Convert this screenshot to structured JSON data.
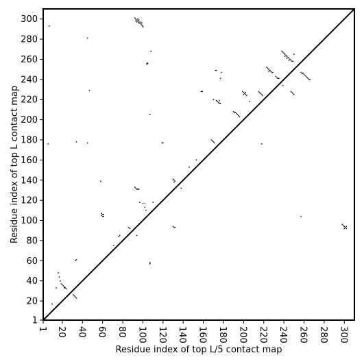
{
  "chart_data": {
    "type": "scatter",
    "title": "",
    "xlabel": "Residue index of top L/5 contact map",
    "ylabel": "Residue index of top L contact map",
    "xlim": [
      1,
      310
    ],
    "ylim": [
      1,
      310
    ],
    "xticks": [
      1,
      20,
      40,
      60,
      80,
      100,
      120,
      140,
      160,
      180,
      200,
      220,
      240,
      260,
      280,
      300
    ],
    "yticks": [
      1,
      20,
      40,
      60,
      80,
      100,
      120,
      140,
      160,
      180,
      200,
      220,
      240,
      260,
      280,
      300
    ],
    "diagonal": true,
    "marker_color": "#000000",
    "series": [
      {
        "values": [
          [
            60,
            106
          ],
          [
            59,
            105
          ],
          [
            61,
            104
          ],
          [
            61,
            106
          ],
          [
            59,
            107
          ],
          [
            60,
            104
          ],
          [
            107,
            57
          ],
          [
            107,
            58
          ],
          [
            257,
            104
          ],
          [
            299,
            95
          ],
          [
            300,
            94
          ],
          [
            301,
            93
          ],
          [
            302,
            92
          ],
          [
            300,
            92
          ],
          [
            298,
            96
          ],
          [
            302,
            94
          ],
          [
            104,
            255
          ],
          [
            104,
            256
          ]
        ]
      },
      {
        "values": [
          [
            7,
            293
          ],
          [
            45,
            281
          ],
          [
            47,
            229
          ],
          [
            34,
            178
          ],
          [
            45,
            177
          ],
          [
            6,
            176
          ],
          [
            58,
            139
          ],
          [
            92,
            301
          ],
          [
            93,
            300
          ],
          [
            94,
            299
          ],
          [
            95,
            298
          ],
          [
            96,
            297
          ],
          [
            97,
            296
          ],
          [
            98,
            295
          ],
          [
            99,
            294
          ],
          [
            100,
            293
          ],
          [
            100,
            292
          ],
          [
            95,
            300
          ],
          [
            96,
            299
          ],
          [
            98,
            297
          ],
          [
            99,
            296
          ],
          [
            93,
            298
          ],
          [
            94,
            297
          ],
          [
            96,
            296
          ],
          [
            108,
            268
          ],
          [
            105,
            256
          ],
          [
            107,
            205
          ],
          [
            92,
            133
          ],
          [
            93,
            132
          ],
          [
            94,
            131
          ],
          [
            95,
            131
          ],
          [
            96,
            131
          ],
          [
            97,
            118
          ],
          [
            100,
            117
          ],
          [
            102,
            117
          ],
          [
            102,
            113
          ],
          [
            103,
            110
          ],
          [
            110,
            118
          ],
          [
            86,
            93
          ],
          [
            87,
            92
          ],
          [
            76,
            84
          ],
          [
            77,
            85
          ],
          [
            71,
            75
          ],
          [
            94,
            85
          ],
          [
            119,
            177
          ],
          [
            120,
            177
          ],
          [
            130,
            141
          ],
          [
            131,
            140
          ],
          [
            132,
            139
          ],
          [
            131,
            138
          ],
          [
            130,
            94
          ],
          [
            131,
            93
          ],
          [
            132,
            93
          ],
          [
            138,
            132
          ],
          [
            146,
            153
          ],
          [
            153,
            160
          ],
          [
            158,
            228
          ],
          [
            159,
            228
          ],
          [
            168,
            180
          ],
          [
            169,
            179
          ],
          [
            170,
            178
          ],
          [
            171,
            177
          ],
          [
            172,
            249
          ],
          [
            173,
            249
          ],
          [
            170,
            220
          ],
          [
            173,
            219
          ],
          [
            174,
            218
          ],
          [
            175,
            217
          ],
          [
            176,
            216
          ],
          [
            177,
            216
          ],
          [
            176,
            219
          ],
          [
            178,
            247
          ],
          [
            177,
            241
          ],
          [
            190,
            208
          ],
          [
            191,
            207
          ],
          [
            192,
            207
          ],
          [
            193,
            206
          ],
          [
            194,
            205
          ],
          [
            195,
            204
          ],
          [
            196,
            203
          ],
          [
            199,
            228
          ],
          [
            200,
            227
          ],
          [
            201,
            226
          ],
          [
            202,
            225
          ],
          [
            203,
            224
          ],
          [
            200,
            225
          ],
          [
            202,
            227
          ],
          [
            206,
            218
          ],
          [
            215,
            228
          ],
          [
            216,
            227
          ],
          [
            217,
            226
          ],
          [
            218,
            225
          ],
          [
            219,
            224
          ],
          [
            218,
            176
          ],
          [
            223,
            252
          ],
          [
            224,
            251
          ],
          [
            225,
            250
          ],
          [
            226,
            249
          ],
          [
            227,
            248
          ],
          [
            228,
            247
          ],
          [
            229,
            247
          ],
          [
            225,
            248
          ],
          [
            232,
            243
          ],
          [
            233,
            242
          ],
          [
            234,
            241
          ],
          [
            235,
            241
          ],
          [
            238,
            268
          ],
          [
            239,
            267
          ],
          [
            240,
            266
          ],
          [
            241,
            265
          ],
          [
            242,
            264
          ],
          [
            243,
            263
          ],
          [
            244,
            262
          ],
          [
            245,
            261
          ],
          [
            246,
            260
          ],
          [
            247,
            259
          ],
          [
            248,
            258
          ],
          [
            249,
            258
          ],
          [
            241,
            263
          ],
          [
            243,
            261
          ],
          [
            245,
            259
          ],
          [
            239,
            234
          ],
          [
            247,
            228
          ],
          [
            248,
            227
          ],
          [
            249,
            226
          ],
          [
            250,
            225
          ],
          [
            250,
            265
          ],
          [
            257,
            247
          ],
          [
            258,
            246
          ],
          [
            259,
            246
          ],
          [
            260,
            245
          ],
          [
            261,
            244
          ],
          [
            262,
            243
          ],
          [
            263,
            242
          ],
          [
            264,
            241
          ],
          [
            265,
            240
          ],
          [
            266,
            240
          ],
          [
            16,
            48
          ],
          [
            17,
            44
          ],
          [
            18,
            40
          ],
          [
            19,
            37
          ],
          [
            20,
            36
          ],
          [
            21,
            35
          ],
          [
            22,
            34
          ],
          [
            23,
            33
          ],
          [
            24,
            32
          ],
          [
            22,
            33
          ],
          [
            14,
            33
          ],
          [
            10,
            17
          ],
          [
            31,
            26
          ],
          [
            32,
            25
          ],
          [
            33,
            24
          ],
          [
            34,
            23
          ],
          [
            33,
            60
          ],
          [
            34,
            61
          ]
        ]
      }
    ]
  }
}
